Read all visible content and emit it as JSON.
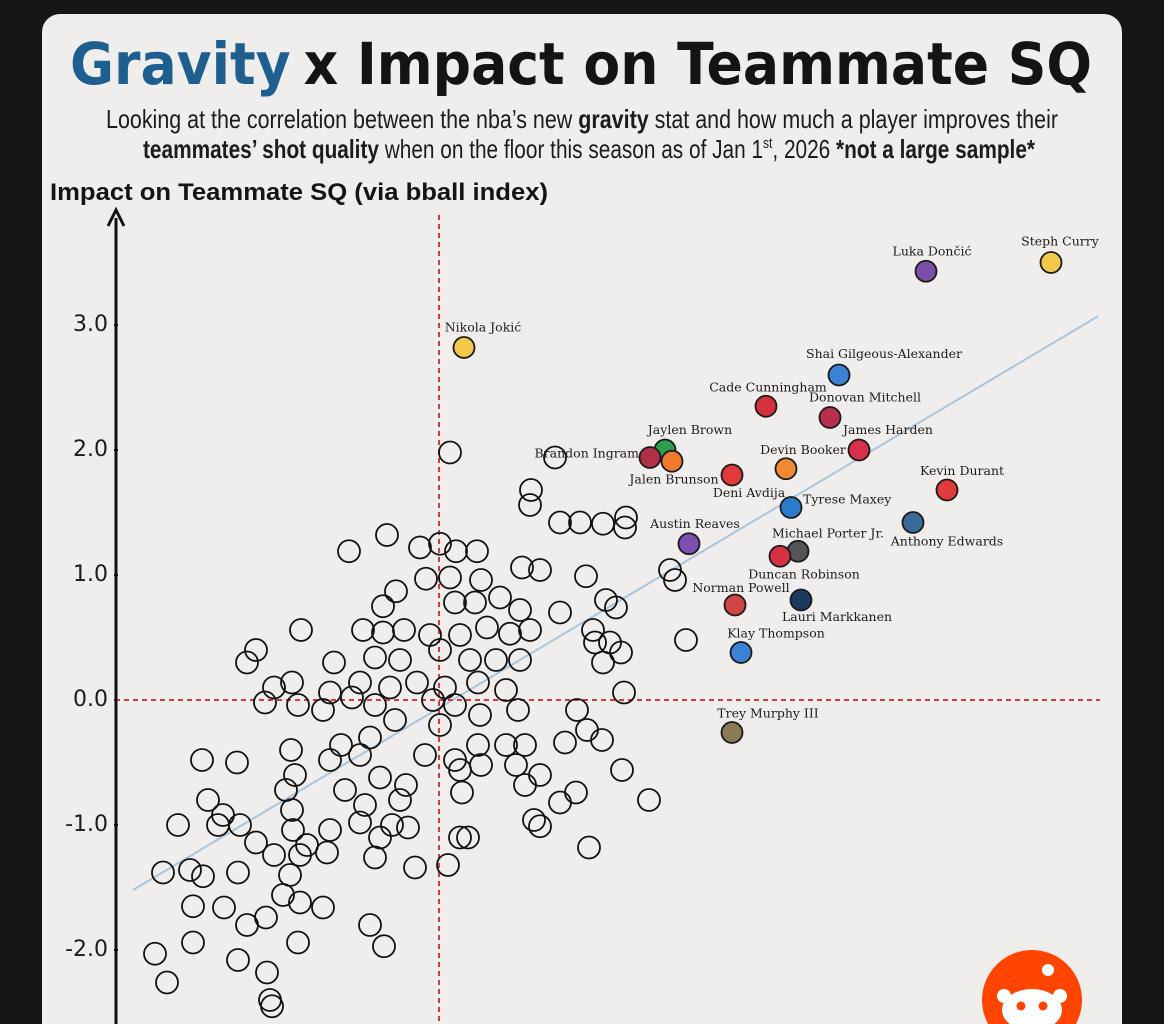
{
  "chart_data": {
    "type": "scatter",
    "title": {
      "highlight": "Gravity",
      "rest": "x Impact on Teammate SQ"
    },
    "subtitle": {
      "line1": [
        "Looking at the correlation between the nba’s new ",
        "gravity",
        " stat and how much a player improves their"
      ],
      "line2": [
        "teammates’ shot quality",
        " when on the floor this season as of Jan 1",
        "st",
        ", 2026 ",
        "*not a large sample*"
      ]
    },
    "y_label": "Impact on Teammate SQ (via bball index)",
    "xlim": [
      -3.24,
      6.61
    ],
    "ylim": [
      -2.6,
      3.88
    ],
    "yticks": [
      {
        "value": -2,
        "label": "-2.0"
      },
      {
        "value": -1,
        "label": "-1.0"
      },
      {
        "value": 0,
        "label": "0.0"
      },
      {
        "value": 1,
        "label": "1.0"
      },
      {
        "value": 2,
        "label": "2.0"
      },
      {
        "value": 3,
        "label": "3.0"
      }
    ],
    "reference_lines": [
      {
        "axis": "x",
        "value": 0,
        "color": "#d63a3a"
      },
      {
        "axis": "y",
        "value": 0,
        "color": "#d63a3a"
      }
    ],
    "trend_line": {
      "x": [
        -3.06,
        6.59
      ],
      "y": [
        -1.52,
        3.07
      ],
      "color": "#a9c6dd"
    },
    "labeled_players": {
      "names": [
        "Luka Dončić",
        "Steph Curry",
        "Nikola Jokić",
        "Shai Gilgeous-Alexander",
        "Cade Cunningham",
        "Donovan Mitchell",
        "James Harden",
        "Jaylen Brown",
        "Brandon Ingram",
        "Jalen Brunson",
        "Devin Booker",
        "Deni Avdija",
        "Kevin Durant",
        "Tyrese Maxey",
        "Anthony Edwards",
        "Austin Reaves",
        "Michael Porter Jr.",
        "Duncan Robinson",
        "Norman Powell",
        "Lauri Markkanen",
        "Klay Thompson",
        "Trey Murphy III"
      ],
      "colors": [
        "#7b4fa8",
        "#f2c94c",
        "#f2c94c",
        "#3b82d6",
        "#d6303e",
        "#b82e4e",
        "#d6304a",
        "#2e9e4a",
        "#b0304a",
        "#f07a2e",
        "#f08a30",
        "#e03a3a",
        "#e03a3a",
        "#2a7bc8",
        "#3a6a9a",
        "#7e4fb0",
        "#555555",
        "#d63045",
        "#d04545",
        "#1e3a5f",
        "#3b82d6",
        "#8a7a55"
      ],
      "x": [
        4.87,
        6.12,
        0.25,
        4.0,
        3.27,
        3.91,
        4.2,
        2.26,
        2.11,
        2.33,
        3.47,
        2.93,
        5.08,
        3.52,
        4.74,
        2.5,
        3.59,
        3.41,
        2.96,
        3.62,
        3.02,
        2.93
      ],
      "y": [
        3.43,
        3.5,
        2.82,
        2.6,
        2.35,
        2.26,
        2.0,
        2.0,
        1.94,
        1.91,
        1.85,
        1.8,
        1.68,
        1.54,
        1.42,
        1.25,
        1.19,
        1.15,
        0.76,
        0.8,
        0.38,
        -0.26
      ]
    },
    "other_players": {
      "x": [
        0.11,
        1.16,
        0.92,
        0.91,
        1.21,
        1.41,
        1.64,
        1.87,
        1.86,
        -0.52,
        -0.9,
        -0.19,
        0.01,
        0.17,
        0.38,
        2.31,
        2.36,
        0.83,
        1.01,
        1.47,
        -0.13,
        0.11,
        0.42,
        -0.43,
        -0.56,
        1.67,
        1.77,
        0.16,
        0.36,
        0.61,
        0.81,
        1.21,
        -1.38,
        -0.76,
        -0.56,
        -0.35,
        -0.09,
        0.21,
        0.48,
        0.71,
        0.91,
        1.54,
        2.47,
        1.56,
        1.71,
        -1.83,
        -1.92,
        -1.05,
        -0.64,
        -0.39,
        0.01,
        0.31,
        0.57,
        0.81,
        1.64,
        1.82,
        -1.65,
        -1.47,
        -0.79,
        -0.49,
        -0.22,
        0.06,
        0.39,
        0.67,
        1.85,
        -1.74,
        -1.41,
        -1.09,
        -1.16,
        -0.87,
        -0.64,
        -0.06,
        0.16,
        0.41,
        0.79,
        1.38,
        -0.44,
        0.01,
        1.48,
        1.63,
        1.26,
        -0.69,
        -0.98,
        0.39,
        0.67,
        0.86,
        -1.48,
        -1.09,
        -0.79,
        -0.14,
        0.16,
        -2.37,
        -2.02,
        0.42,
        0.77,
        1.83,
        -1.44,
        -0.59,
        -0.33,
        0.21,
        1.01,
        0.86,
        -1.53,
        -0.94,
        -2.31,
        1.37,
        1.21,
        2.1,
        0.23,
        -0.74,
        -0.39,
        -1.47,
        -2.16,
        -2.21,
        -1.99,
        -2.61,
        -0.79,
        -0.47,
        -0.31,
        0.95,
        1.01,
        0.21,
        0.29,
        -1.83,
        -1.46,
        -1.09,
        -1.32,
        -0.59,
        -1.65,
        -1.39,
        -1.12,
        -0.64,
        1.5,
        0.09,
        -0.24,
        -2.76,
        -2.49,
        -2.36,
        -2.01,
        -1.49,
        -1.56,
        -1.39,
        -1.16,
        -2.46,
        -2.15,
        -1.73,
        -1.92,
        -0.69,
        -2.46,
        -1.41,
        -0.55,
        -2.84,
        -2.01,
        -1.72,
        -2.72,
        -1.69,
        -1.67
      ],
      "y": [
        1.98,
        1.94,
        1.68,
        1.56,
        1.42,
        1.42,
        1.41,
        1.46,
        1.38,
        1.32,
        1.19,
        1.22,
        1.25,
        1.19,
        1.19,
        1.04,
        0.96,
        1.06,
        1.04,
        0.99,
        0.97,
        0.98,
        0.96,
        0.87,
        0.75,
        0.8,
        0.74,
        0.78,
        0.78,
        0.82,
        0.72,
        0.7,
        0.56,
        0.56,
        0.54,
        0.56,
        0.52,
        0.52,
        0.58,
        0.53,
        0.56,
        0.56,
        0.48,
        0.46,
        0.46,
        0.4,
        0.3,
        0.3,
        0.34,
        0.32,
        0.4,
        0.32,
        0.32,
        0.32,
        0.3,
        0.38,
        0.1,
        0.14,
        0.14,
        0.1,
        0.14,
        0.1,
        0.14,
        0.08,
        0.06,
        -0.02,
        -0.04,
        0.06,
        -0.08,
        0.02,
        -0.04,
        0.0,
        -0.04,
        -0.12,
        -0.08,
        -0.08,
        -0.16,
        -0.2,
        -0.24,
        -0.32,
        -0.34,
        -0.3,
        -0.36,
        -0.36,
        -0.36,
        -0.36,
        -0.4,
        -0.48,
        -0.44,
        -0.44,
        -0.48,
        -0.48,
        -0.5,
        -0.52,
        -0.52,
        -0.56,
        -0.6,
        -0.62,
        -0.68,
        -0.56,
        -0.6,
        -0.68,
        -0.72,
        -0.72,
        -0.8,
        -0.74,
        -0.82,
        -0.8,
        -0.74,
        -0.84,
        -0.8,
        -0.88,
        -0.92,
        -1.0,
        -1.0,
        -1.0,
        -0.98,
        -1.0,
        -1.02,
        -0.96,
        -1.01,
        -1.1,
        -1.1,
        -1.14,
        -1.04,
        -1.04,
        -1.16,
        -1.1,
        -1.24,
        -1.24,
        -1.22,
        -1.26,
        -1.18,
        -1.32,
        -1.34,
        -1.38,
        -1.36,
        -1.41,
        -1.38,
        -1.4,
        -1.56,
        -1.62,
        -1.66,
        -1.65,
        -1.66,
        -1.74,
        -1.8,
        -1.8,
        -1.94,
        -1.94,
        -1.97,
        -2.03,
        -2.08,
        -2.18,
        -2.26,
        -2.4,
        -2.45
      ]
    }
  }
}
